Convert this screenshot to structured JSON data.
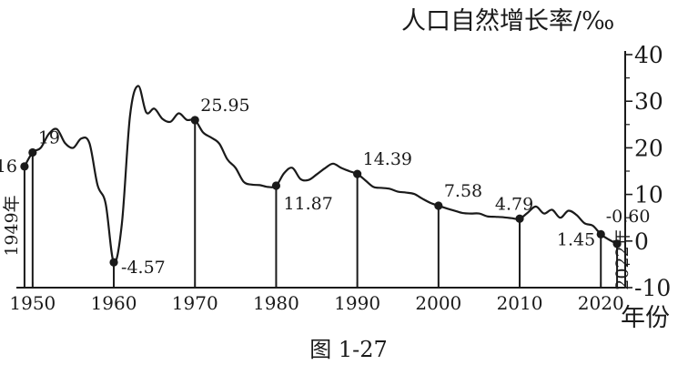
{
  "chart_data": {
    "type": "line",
    "title": "",
    "ylabel": "人口自然增长率/‰",
    "xlabel": "年份",
    "caption": "图 1-27",
    "xlim": [
      1948,
      2023
    ],
    "ylim": [
      -10,
      40
    ],
    "x_ticks": [
      "1950",
      "1960",
      "1970",
      "1980",
      "1990",
      "2000",
      "2010",
      "2020"
    ],
    "y_ticks": [
      "40",
      "30",
      "20",
      "10",
      "0",
      "-10"
    ],
    "grid": false,
    "series": [
      {
        "x": [
          1949,
          1950,
          1951,
          1952,
          1953,
          1954,
          1955,
          1956,
          1957,
          1958,
          1959,
          1960,
          1961,
          1962,
          1963,
          1964,
          1965,
          1966,
          1967,
          1968,
          1969,
          1970,
          1971,
          1972,
          1973,
          1974,
          1975,
          1976,
          1977,
          1978,
          1979,
          1980,
          1981,
          1982,
          1983,
          1984,
          1985,
          1986,
          1987,
          1988,
          1989,
          1990,
          1991,
          1992,
          1993,
          1994,
          1995,
          1996,
          1997,
          1998,
          1999,
          2000,
          2001,
          2002,
          2003,
          2004,
          2005,
          2006,
          2007,
          2008,
          2009,
          2010,
          2011,
          2012,
          2013,
          2014,
          2015,
          2016,
          2017,
          2018,
          2019,
          2020,
          2021,
          2022
        ],
        "values": [
          16,
          19,
          20,
          23,
          24,
          21,
          20,
          22,
          21,
          12,
          8,
          -4.57,
          3.8,
          26.9,
          33.3,
          27.6,
          28.4,
          26.2,
          25.6,
          27.4,
          26,
          25.95,
          23.3,
          22.2,
          20.9,
          17.5,
          15.7,
          12.7,
          12.1,
          12,
          11.6,
          11.87,
          14.6,
          15.7,
          13.3,
          13.1,
          14.3,
          15.6,
          16.6,
          15.7,
          15,
          14.39,
          13,
          11.6,
          11.4,
          11.2,
          10.6,
          10.4,
          10.1,
          9.1,
          8.2,
          7.58,
          7,
          6.5,
          6,
          5.9,
          5.9,
          5.3,
          5.2,
          5.1,
          4.9,
          4.79,
          6.1,
          7.4,
          5.9,
          6.7,
          5,
          6.5,
          5.6,
          3.8,
          3.3,
          1.45,
          0.3,
          -0.6
        ]
      }
    ],
    "highlights": [
      {
        "x": 1949,
        "y": 16,
        "label": "16",
        "side": "left"
      },
      {
        "x": 1950,
        "y": 19,
        "label": "19",
        "side": "up"
      },
      {
        "x": 1960,
        "y": -4.57,
        "label": "-4.57",
        "side": "right"
      },
      {
        "x": 1970,
        "y": 25.95,
        "label": "25.95",
        "side": "up"
      },
      {
        "x": 1980,
        "y": 11.87,
        "label": "11.87",
        "side": "below"
      },
      {
        "x": 1990,
        "y": 14.39,
        "label": "14.39",
        "side": "up"
      },
      {
        "x": 2000,
        "y": 7.58,
        "label": "7.58",
        "side": "up"
      },
      {
        "x": 2010,
        "y": 4.79,
        "label": "4.79",
        "side": "upleft"
      },
      {
        "x": 2020,
        "y": 1.45,
        "label": "1.45",
        "side": "left"
      },
      {
        "x": 2022,
        "y": -0.6,
        "label": "-0.60",
        "side": "up"
      }
    ],
    "vertical_labels": [
      {
        "x": 1949,
        "text": "1949年"
      },
      {
        "x": 2022,
        "text": "2022年"
      }
    ]
  }
}
